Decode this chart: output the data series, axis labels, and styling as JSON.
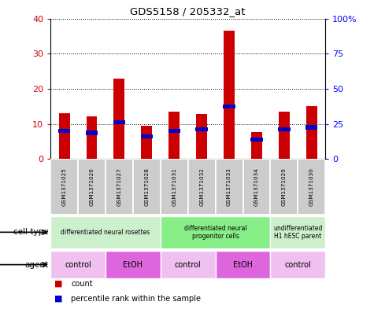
{
  "title": "GDS5158 / 205332_at",
  "samples": [
    "GSM1371025",
    "GSM1371026",
    "GSM1371027",
    "GSM1371028",
    "GSM1371031",
    "GSM1371032",
    "GSM1371033",
    "GSM1371034",
    "GSM1371029",
    "GSM1371030"
  ],
  "counts": [
    13.0,
    12.2,
    23.0,
    9.5,
    13.5,
    12.8,
    36.5,
    7.8,
    13.5,
    15.0
  ],
  "percentile_ranks": [
    8.0,
    7.5,
    10.5,
    6.5,
    8.0,
    8.5,
    15.0,
    5.5,
    8.5,
    9.0
  ],
  "ylim_left": [
    0,
    40
  ],
  "ylim_right": [
    0,
    100
  ],
  "yticks_left": [
    0,
    10,
    20,
    30,
    40
  ],
  "yticks_right": [
    0,
    25,
    50,
    75,
    100
  ],
  "ytick_labels_right": [
    "0",
    "25",
    "50",
    "75",
    "100%"
  ],
  "bar_color": "#cc0000",
  "percentile_color": "#0000cc",
  "cell_type_groups": [
    {
      "label": "differentiated neural rosettes",
      "start": 0,
      "end": 4,
      "color": "#ccf0cc"
    },
    {
      "label": "differentiated neural\nprogenitor cells",
      "start": 4,
      "end": 8,
      "color": "#88ee88"
    },
    {
      "label": "undifferentiated\nH1 hESC parent",
      "start": 8,
      "end": 10,
      "color": "#ccf0cc"
    }
  ],
  "agent_groups": [
    {
      "label": "control",
      "start": 0,
      "end": 2,
      "color": "#f0c0f0"
    },
    {
      "label": "EtOH",
      "start": 2,
      "end": 4,
      "color": "#dd66dd"
    },
    {
      "label": "control",
      "start": 4,
      "end": 6,
      "color": "#f0c0f0"
    },
    {
      "label": "EtOH",
      "start": 6,
      "end": 8,
      "color": "#dd66dd"
    },
    {
      "label": "control",
      "start": 8,
      "end": 10,
      "color": "#f0c0f0"
    }
  ],
  "row_label_cell_type": "cell type",
  "row_label_agent": "agent",
  "legend_count": "count",
  "legend_percentile": "percentile rank within the sample",
  "bar_width": 0.4,
  "sample_bg_color": "#cccccc",
  "percentile_bar_height": 1.2
}
